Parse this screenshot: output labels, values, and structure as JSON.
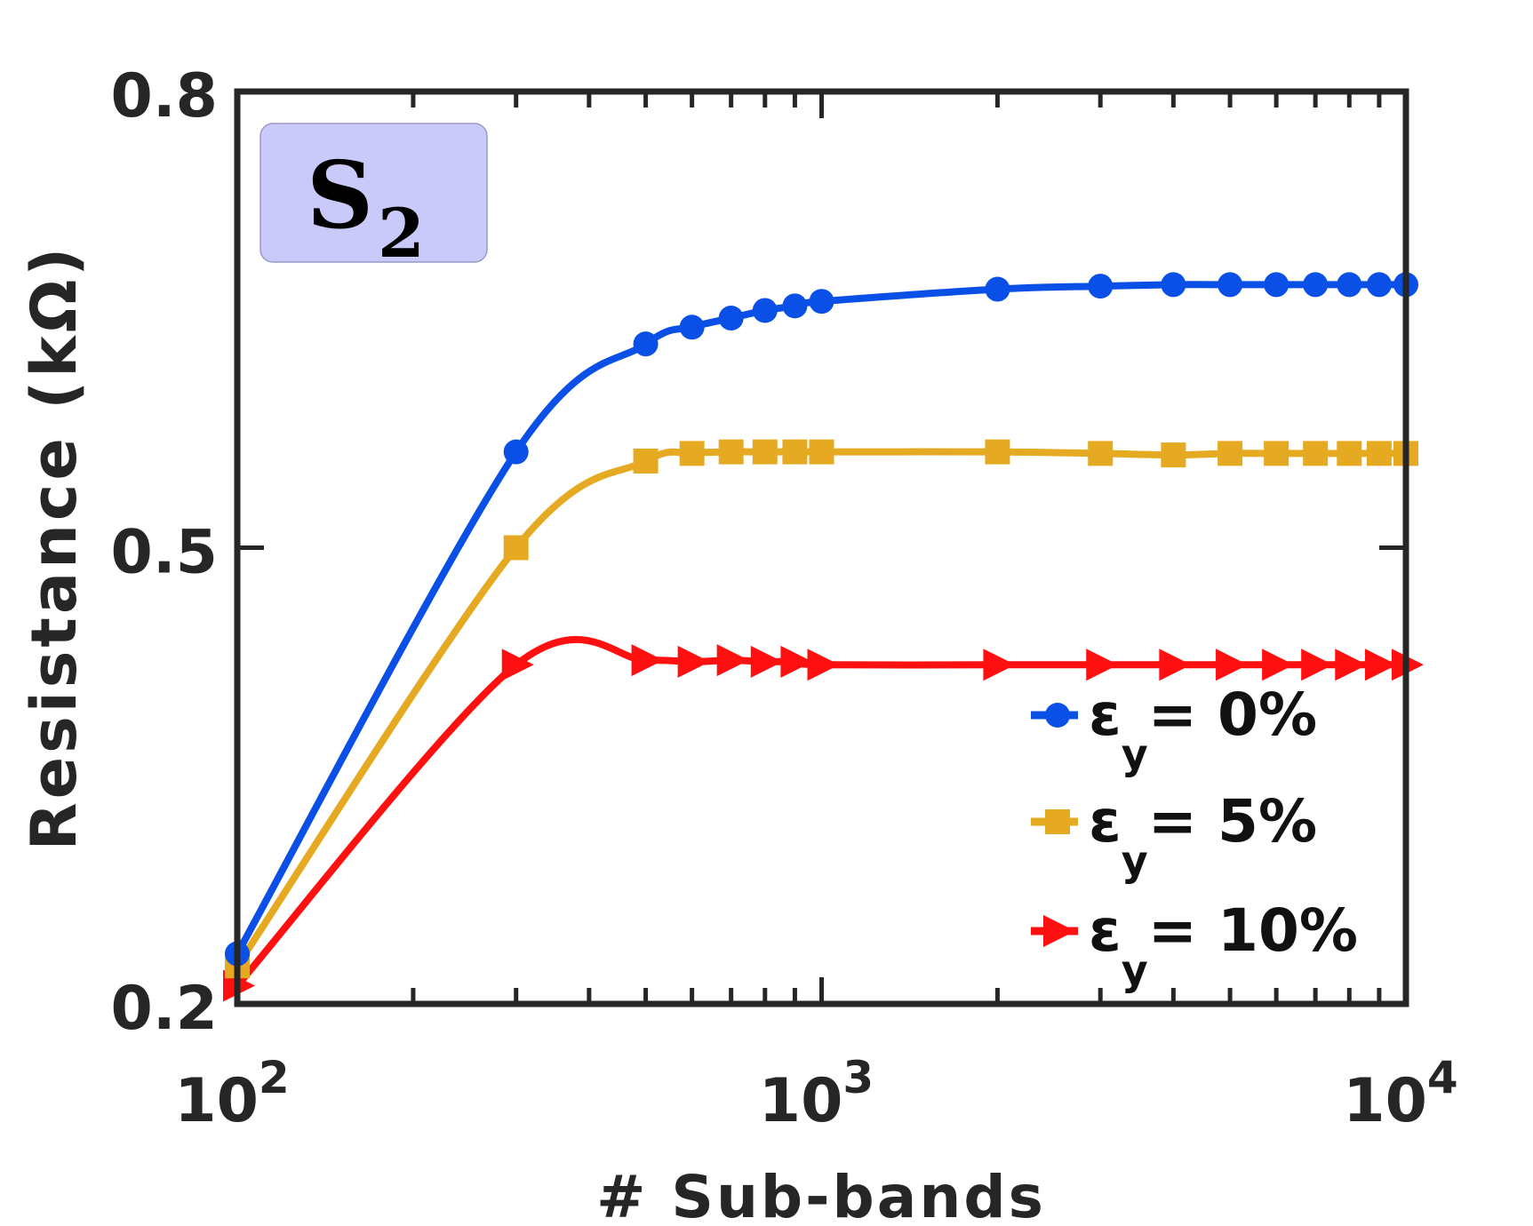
{
  "chart_data": {
    "type": "line",
    "title": "",
    "panel_label": {
      "main": "S",
      "sub": "2"
    },
    "xlabel": "# Sub-bands",
    "ylabel": "Resistance (kΩ)",
    "xscale": "log",
    "xlim": [
      100,
      10000
    ],
    "ylim": [
      0.2,
      0.8
    ],
    "x_ticks": [
      {
        "value": 100,
        "base": "10",
        "exp": "2"
      },
      {
        "value": 1000,
        "base": "10",
        "exp": "3"
      },
      {
        "value": 10000,
        "base": "10",
        "exp": "4"
      }
    ],
    "y_ticks": [
      {
        "value": 0.2,
        "label": "0.2"
      },
      {
        "value": 0.5,
        "label": "0.5"
      },
      {
        "value": 0.8,
        "label": "0.8"
      }
    ],
    "legend_position": "bottom-right",
    "series": [
      {
        "name": "ε_y = 0%",
        "label_main": "ε",
        "label_sub": "y",
        "label_rest": "= 0%",
        "color": "#0b50e6",
        "marker": "circle",
        "x": [
          100,
          300,
          500,
          600,
          700,
          800,
          900,
          1000,
          2000,
          3000,
          4000,
          5000,
          6000,
          7000,
          8000,
          9000,
          10000
        ],
        "values": [
          0.233,
          0.563,
          0.634,
          0.645,
          0.651,
          0.656,
          0.659,
          0.662,
          0.67,
          0.672,
          0.673,
          0.673,
          0.673,
          0.673,
          0.673,
          0.673,
          0.673
        ]
      },
      {
        "name": "ε_y = 5%",
        "label_main": "ε",
        "label_sub": "y",
        "label_rest": "= 5%",
        "color": "#e6aa22",
        "marker": "square",
        "x": [
          100,
          300,
          500,
          600,
          700,
          800,
          900,
          1000,
          2000,
          3000,
          4000,
          5000,
          6000,
          7000,
          8000,
          9000,
          10000
        ],
        "values": [
          0.225,
          0.5,
          0.557,
          0.562,
          0.563,
          0.563,
          0.563,
          0.563,
          0.563,
          0.562,
          0.561,
          0.562,
          0.562,
          0.562,
          0.562,
          0.562,
          0.562
        ]
      },
      {
        "name": "ε_y = 10%",
        "label_main": "ε",
        "label_sub": "y",
        "label_rest": "= 10%",
        "color": "#ff1010",
        "marker": "triangle-right",
        "x": [
          100,
          300,
          500,
          600,
          700,
          800,
          900,
          1000,
          2000,
          3000,
          4000,
          5000,
          6000,
          7000,
          8000,
          9000,
          10000
        ],
        "values": [
          0.212,
          0.423,
          0.426,
          0.425,
          0.426,
          0.425,
          0.425,
          0.423,
          0.423,
          0.423,
          0.423,
          0.423,
          0.423,
          0.423,
          0.423,
          0.423,
          0.423
        ]
      }
    ]
  }
}
